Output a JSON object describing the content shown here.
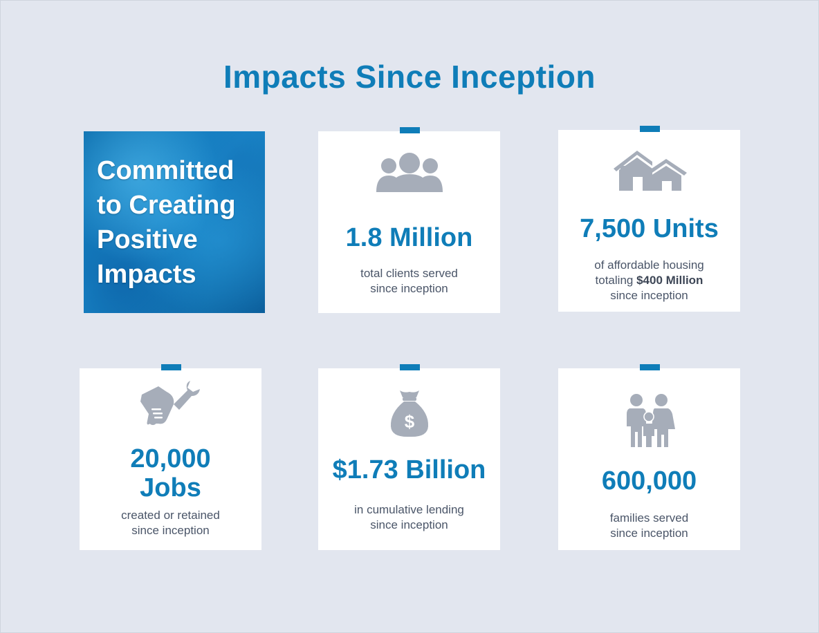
{
  "page": {
    "title": "Impacts Since Inception",
    "accent_color": "#0f7db8",
    "icon_color": "#a6adb9"
  },
  "hero": {
    "text": "Committed to Creating Positive Impacts"
  },
  "cards": [
    {
      "icon": "people-group-icon",
      "stat": "1.8 Million",
      "desc_line1": "total clients served",
      "desc_line2": "since inception"
    },
    {
      "icon": "houses-icon",
      "stat": "7,500 Units",
      "desc_line1": "of affordable housing",
      "desc_line2_prefix": "totaling ",
      "desc_line2_bold": "$400 Million",
      "desc_line3": "since inception"
    },
    {
      "icon": "wrench-hand-icon",
      "stat_line1": "20,000",
      "stat_line2": "Jobs",
      "desc_line1": "created or retained",
      "desc_line2": "since inception"
    },
    {
      "icon": "money-bag-icon",
      "stat": "$1.73 Billion",
      "desc_line1": "in cumulative lending",
      "desc_line2": "since inception"
    },
    {
      "icon": "family-icon",
      "stat": "600,000",
      "desc_line1": "families served",
      "desc_line2": "since inception"
    }
  ]
}
